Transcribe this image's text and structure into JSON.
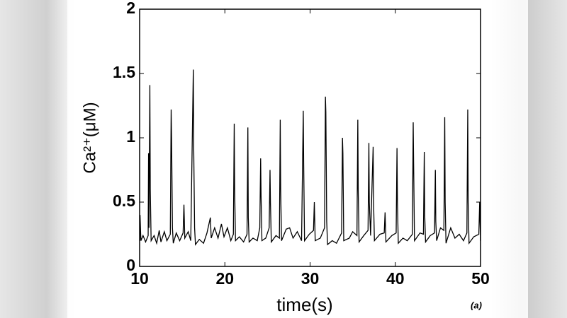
{
  "chart_data": {
    "type": "line",
    "xlabel": "time(s)",
    "ylabel": "Ca²⁺(μM)",
    "annotation": "(a)",
    "xlim": [
      10,
      50
    ],
    "ylim": [
      0,
      2
    ],
    "xticks": [
      10,
      20,
      30,
      40,
      50
    ],
    "yticks": [
      0,
      0.5,
      1,
      1.5,
      2
    ],
    "series": [
      {
        "color": "#000000",
        "x": [
          10.0,
          10.05,
          10.15,
          10.4,
          10.7,
          11.0,
          11.05,
          11.1,
          11.2,
          11.25,
          11.35,
          11.7,
          12.0,
          12.3,
          12.5,
          12.9,
          13.2,
          13.6,
          13.7,
          13.75,
          13.85,
          13.95,
          14.3,
          14.7,
          15.1,
          15.2,
          15.3,
          15.7,
          16.0,
          16.3,
          16.35,
          16.45,
          16.55,
          17.0,
          17.5,
          17.9,
          18.3,
          18.4,
          18.8,
          19.2,
          19.6,
          19.9,
          20.3,
          20.7,
          21.0,
          21.1,
          21.15,
          21.25,
          21.7,
          22.2,
          22.6,
          22.7,
          22.75,
          22.85,
          23.3,
          23.8,
          24.1,
          24.2,
          24.25,
          24.35,
          24.8,
          25.2,
          25.3,
          25.35,
          25.45,
          26.0,
          26.4,
          26.5,
          26.55,
          26.65,
          27.2,
          27.6,
          28.0,
          28.5,
          29.0,
          29.2,
          29.25,
          29.35,
          29.9,
          30.4,
          30.5,
          30.6,
          31.2,
          31.7,
          31.8,
          31.85,
          31.95,
          32.05,
          32.6,
          33.1,
          33.7,
          33.8,
          33.85,
          33.95,
          34.6,
          35.0,
          35.5,
          35.6,
          35.65,
          35.75,
          36.3,
          36.8,
          36.9,
          36.95,
          37.1,
          37.4,
          37.45,
          37.55,
          38.2,
          38.7,
          38.8,
          38.9,
          39.6,
          40.1,
          40.2,
          40.25,
          40.35,
          40.9,
          41.4,
          42.0,
          42.1,
          42.15,
          42.25,
          42.9,
          43.3,
          43.4,
          43.45,
          43.55,
          44.1,
          44.6,
          44.7,
          44.75,
          44.85,
          45.3,
          45.7,
          45.8,
          45.85,
          45.95,
          46.5,
          47.0,
          47.5,
          48.0,
          48.4,
          48.5,
          48.55,
          48.65,
          49.2,
          49.8,
          49.9,
          50.0
        ],
        "values": [
          0.2,
          0.4,
          0.2,
          0.24,
          0.19,
          0.24,
          0.88,
          0.3,
          1.41,
          0.6,
          0.2,
          0.24,
          0.18,
          0.28,
          0.19,
          0.27,
          0.2,
          0.25,
          1.22,
          1.0,
          0.3,
          0.18,
          0.26,
          0.2,
          0.26,
          0.48,
          0.22,
          0.27,
          0.2,
          1.53,
          0.9,
          0.3,
          0.17,
          0.21,
          0.18,
          0.26,
          0.38,
          0.22,
          0.3,
          0.22,
          0.33,
          0.23,
          0.3,
          0.2,
          0.25,
          1.11,
          0.6,
          0.2,
          0.23,
          0.19,
          0.25,
          1.08,
          0.38,
          0.19,
          0.22,
          0.2,
          0.3,
          0.84,
          0.55,
          0.2,
          0.22,
          0.3,
          0.75,
          0.5,
          0.19,
          0.24,
          0.22,
          1.14,
          0.6,
          0.2,
          0.29,
          0.3,
          0.22,
          0.27,
          0.2,
          1.21,
          0.8,
          0.2,
          0.25,
          0.28,
          0.5,
          0.2,
          0.22,
          0.3,
          1.32,
          1.2,
          0.35,
          0.17,
          0.2,
          0.18,
          0.26,
          1.0,
          0.88,
          0.2,
          0.22,
          0.27,
          0.24,
          1.14,
          0.6,
          0.19,
          0.24,
          0.28,
          0.96,
          0.5,
          0.24,
          0.93,
          0.5,
          0.2,
          0.25,
          0.26,
          0.42,
          0.19,
          0.24,
          0.26,
          0.92,
          0.5,
          0.18,
          0.22,
          0.2,
          0.25,
          1.12,
          0.8,
          0.2,
          0.26,
          0.25,
          0.89,
          0.4,
          0.19,
          0.24,
          0.26,
          0.75,
          0.35,
          0.2,
          0.3,
          0.28,
          1.16,
          0.5,
          0.18,
          0.3,
          0.22,
          0.25,
          0.2,
          0.26,
          1.22,
          0.5,
          0.18,
          0.23,
          0.25,
          0.5,
          0.2
        ]
      }
    ]
  }
}
